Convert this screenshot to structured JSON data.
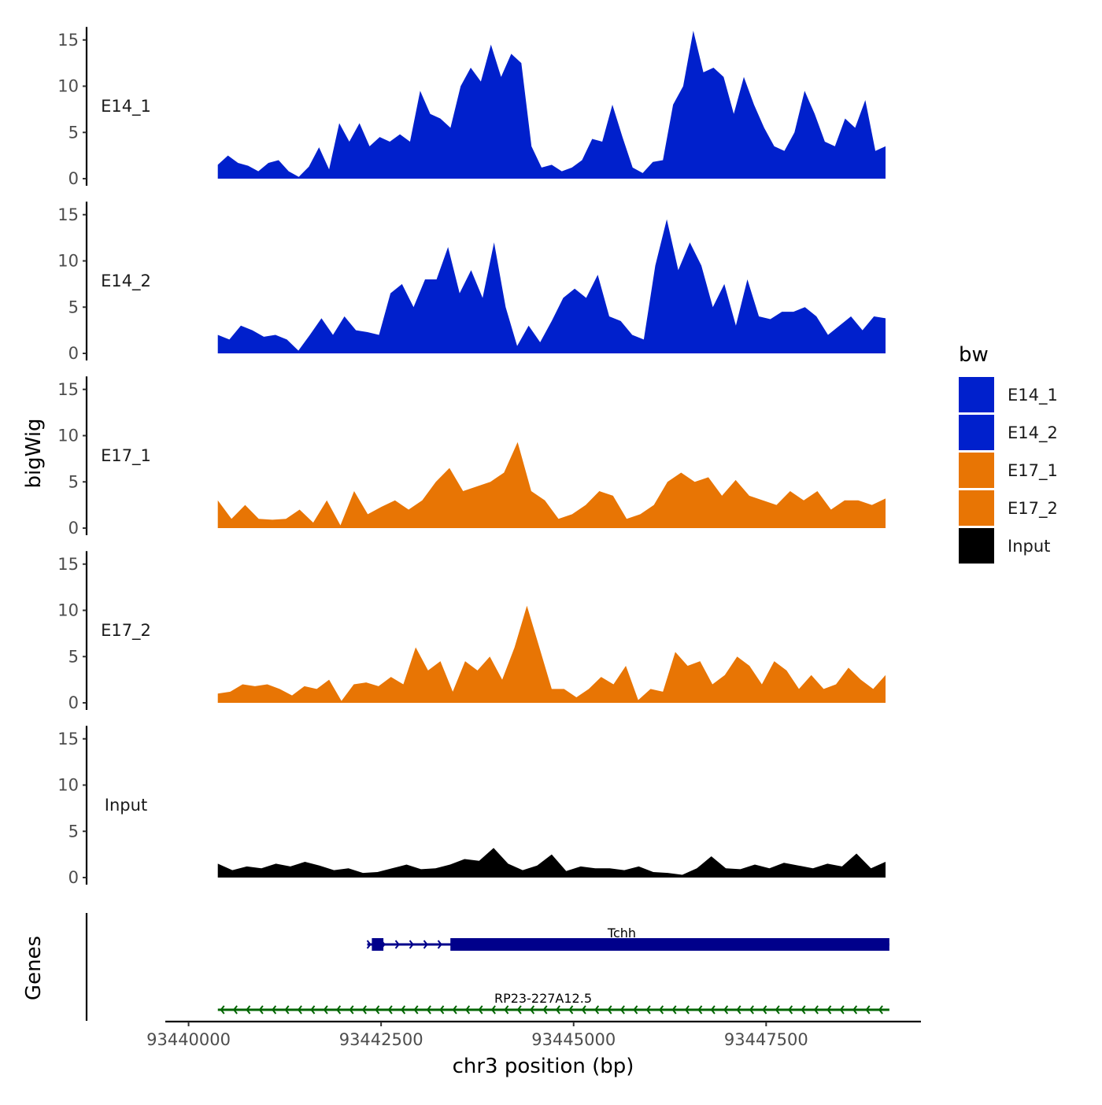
{
  "chart_data": {
    "type": "area",
    "title": "",
    "xlabel": "chr3 position (bp)",
    "ylabel": "bigWig",
    "genes_label": "Genes",
    "xlim": [
      93439800,
      93449500
    ],
    "ylim": [
      0,
      16
    ],
    "x_ticks": [
      {
        "value": 93440000,
        "label": "93440000"
      },
      {
        "value": 93442500,
        "label": "93442500"
      },
      {
        "value": 93445000,
        "label": "93445000"
      },
      {
        "value": 93447500,
        "label": "93447500"
      }
    ],
    "y_ticks": [
      {
        "value": 0,
        "label": "0"
      },
      {
        "value": 5,
        "label": "5"
      },
      {
        "value": 10,
        "label": "10"
      },
      {
        "value": 15,
        "label": "15"
      }
    ],
    "x_start": 93440380,
    "x_end": 93449050,
    "legend": {
      "title": "bw",
      "entries": [
        {
          "label": "E14_1",
          "color": "#0020cc"
        },
        {
          "label": "E14_2",
          "color": "#0020cc"
        },
        {
          "label": "E17_1",
          "color": "#e87504"
        },
        {
          "label": "E17_2",
          "color": "#e87504"
        },
        {
          "label": "Input",
          "color": "#000000"
        }
      ]
    },
    "series": [
      {
        "name": "E14_1",
        "color": "#0020cc",
        "values": [
          1.5,
          2.5,
          1.7,
          1.4,
          0.8,
          1.7,
          2.0,
          0.8,
          0.2,
          1.3,
          3.4,
          1.0,
          6.0,
          4.0,
          6.0,
          3.5,
          4.5,
          4.0,
          4.8,
          4.0,
          9.5,
          7.0,
          6.5,
          5.5,
          10.0,
          12.0,
          10.5,
          14.5,
          11.0,
          13.5,
          12.5,
          3.5,
          1.2,
          1.5,
          0.8,
          1.2,
          2.0,
          4.3,
          4.0,
          8.0,
          4.5,
          1.2,
          0.6,
          1.8,
          2.0,
          8.0,
          10.0,
          16.0,
          11.5,
          12.0,
          11.0,
          7.0,
          11.0,
          8.0,
          5.5,
          3.5,
          3.0,
          5.0,
          9.5,
          7.0,
          4.0,
          3.5,
          6.5,
          5.5,
          8.5,
          3.0,
          3.5
        ]
      },
      {
        "name": "E14_2",
        "color": "#0020cc",
        "values": [
          2.0,
          1.5,
          3.0,
          2.5,
          1.8,
          2.0,
          1.5,
          0.3,
          2.0,
          3.8,
          2.0,
          4.0,
          2.5,
          2.3,
          2.0,
          6.5,
          7.5,
          5.0,
          8.0,
          8.0,
          11.5,
          6.5,
          9.0,
          6.0,
          12.0,
          5.0,
          0.8,
          3.0,
          1.2,
          3.5,
          6.0,
          7.0,
          6.0,
          8.5,
          4.0,
          3.5,
          2.0,
          1.5,
          9.5,
          14.5,
          9.0,
          12.0,
          9.5,
          5.0,
          7.5,
          3.0,
          8.0,
          4.0,
          3.7,
          4.5,
          4.5,
          5.0,
          4.0,
          2.0,
          3.0,
          4.0,
          2.5,
          4.0,
          3.8
        ]
      },
      {
        "name": "E17_1",
        "color": "#e87504",
        "values": [
          3.0,
          1.0,
          2.5,
          1.0,
          0.9,
          1.0,
          2.0,
          0.6,
          3.0,
          0.3,
          4.0,
          1.5,
          2.3,
          3.0,
          2.0,
          3.0,
          5.0,
          6.5,
          4.0,
          4.5,
          5.0,
          6.0,
          9.3,
          4.0,
          3.0,
          1.0,
          1.5,
          2.5,
          4.0,
          3.5,
          1.0,
          1.5,
          2.5,
          5.0,
          6.0,
          5.0,
          5.5,
          3.5,
          5.2,
          3.5,
          3.0,
          2.5,
          4.0,
          3.0,
          4.0,
          2.0,
          3.0,
          3.0,
          2.5,
          3.2
        ]
      },
      {
        "name": "E17_2",
        "color": "#e87504",
        "values": [
          1.0,
          1.2,
          2.0,
          1.8,
          2.0,
          1.5,
          0.8,
          1.8,
          1.5,
          2.5,
          0.2,
          2.0,
          2.2,
          1.8,
          2.8,
          2.0,
          6.0,
          3.5,
          4.5,
          1.2,
          4.5,
          3.5,
          5.0,
          2.5,
          6.0,
          10.5,
          6.0,
          1.5,
          1.5,
          0.6,
          1.5,
          2.8,
          2.0,
          4.0,
          0.3,
          1.5,
          1.2,
          5.5,
          4.0,
          4.5,
          2.0,
          3.0,
          5.0,
          4.0,
          2.0,
          4.5,
          3.5,
          1.5,
          3.0,
          1.5,
          2.0,
          3.8,
          2.5,
          1.5,
          3.0
        ]
      },
      {
        "name": "Input",
        "color": "#000000",
        "values": [
          1.5,
          0.8,
          1.2,
          1.0,
          1.5,
          1.2,
          1.7,
          1.3,
          0.8,
          1.0,
          0.5,
          0.6,
          1.0,
          1.4,
          0.9,
          1.0,
          1.4,
          2.0,
          1.8,
          3.2,
          1.5,
          0.8,
          1.3,
          2.5,
          0.7,
          1.2,
          1.0,
          1.0,
          0.8,
          1.2,
          0.6,
          0.5,
          0.3,
          1.0,
          2.3,
          1.0,
          0.9,
          1.4,
          1.0,
          1.6,
          1.3,
          1.0,
          1.5,
          1.2,
          2.6,
          1.0,
          1.7
        ]
      }
    ],
    "genes": [
      {
        "name": "Tchh",
        "strand": "+",
        "color": "#00008b",
        "start": 93442320,
        "end": 93449100,
        "cds_start": 93443400,
        "cds_end": 93449100,
        "utr5": [
          93442380,
          93442530
        ]
      },
      {
        "name": "RP23-227A12.5",
        "strand": "-",
        "color": "#006400",
        "start": 93440380,
        "end": 93449100
      }
    ]
  }
}
